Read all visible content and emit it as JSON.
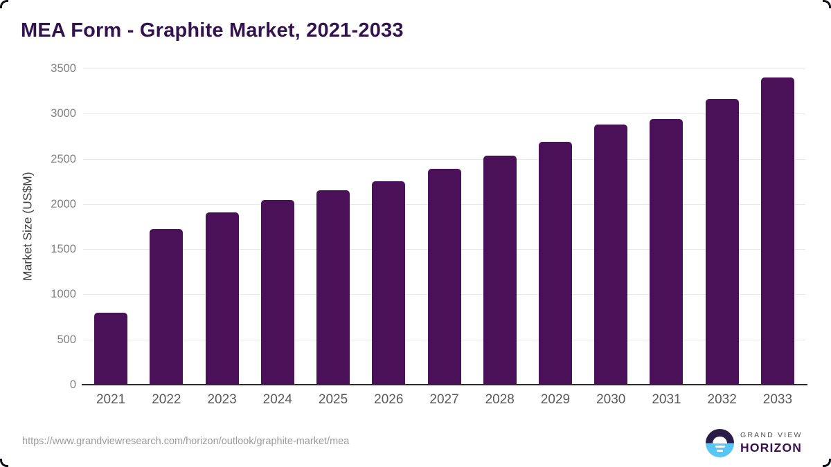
{
  "title": "MEA Form - Graphite Market, 2021-2033",
  "chart_data": {
    "type": "bar",
    "title": "MEA Form - Graphite Market, 2021-2033",
    "categories": [
      "2021",
      "2022",
      "2023",
      "2024",
      "2025",
      "2026",
      "2027",
      "2028",
      "2029",
      "2030",
      "2031",
      "2032",
      "2033"
    ],
    "values": [
      795,
      1720,
      1910,
      2045,
      2150,
      2255,
      2390,
      2535,
      2690,
      2880,
      2940,
      3160,
      3400
    ],
    "xlabel": "",
    "ylabel": "Market Size (US$M)",
    "ylim": [
      0,
      3500
    ],
    "yticks": [
      0,
      500,
      1000,
      1500,
      2000,
      2500,
      3000,
      3500
    ],
    "grid": true,
    "legend_position": "none",
    "bar_color": "#4a1159"
  },
  "colors": {
    "title": "#33134d",
    "bar": "#4a1159",
    "axis_line": "#2b2b2b",
    "gridline": "#e8e8e8",
    "y_tick_text": "#818181",
    "x_tick_text": "#58595a",
    "url_text": "#9b9b9b",
    "logo_navy": "#2b1b47",
    "logo_blue": "#57c6f2",
    "logo_wordmark": "#3a1150"
  },
  "footer": {
    "source_url": "https://www.grandviewresearch.com/horizon/outlook/graphite-market/mea",
    "logo": {
      "top_text": "GRAND VIEW",
      "bottom_text": "HORIZON"
    }
  }
}
